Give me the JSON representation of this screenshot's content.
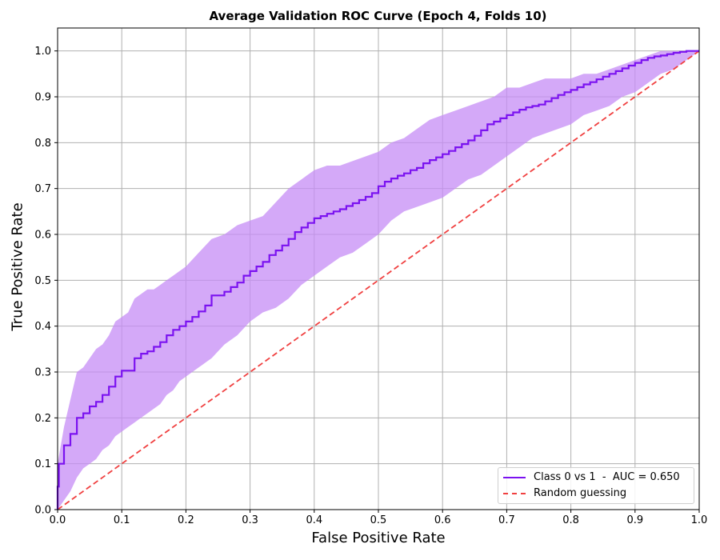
{
  "chart_data": {
    "type": "line",
    "title": "Average Validation ROC Curve (Epoch 4, Folds 10)",
    "xlabel": "False Positive Rate",
    "ylabel": "True Positive Rate",
    "xlim": [
      0.0,
      1.0
    ],
    "ylim": [
      0.0,
      1.05
    ],
    "xticks": [
      "0.0",
      "0.1",
      "0.2",
      "0.3",
      "0.4",
      "0.5",
      "0.6",
      "0.7",
      "0.8",
      "0.9",
      "1.0"
    ],
    "yticks": [
      "0.0",
      "0.1",
      "0.2",
      "0.3",
      "0.4",
      "0.5",
      "0.6",
      "0.7",
      "0.8",
      "0.9",
      "1.0"
    ],
    "grid": true,
    "legend_position": "lower-right",
    "series": [
      {
        "name": "Class 0 vs 1  -  AUC = 0.650",
        "color": "#7b12f0",
        "style": "step",
        "x": [
          0.0,
          0.002,
          0.01,
          0.02,
          0.03,
          0.04,
          0.05,
          0.06,
          0.07,
          0.08,
          0.09,
          0.1,
          0.12,
          0.13,
          0.14,
          0.15,
          0.16,
          0.17,
          0.18,
          0.19,
          0.2,
          0.21,
          0.22,
          0.23,
          0.24,
          0.26,
          0.27,
          0.28,
          0.29,
          0.3,
          0.31,
          0.32,
          0.33,
          0.34,
          0.35,
          0.36,
          0.37,
          0.38,
          0.39,
          0.4,
          0.41,
          0.42,
          0.43,
          0.44,
          0.45,
          0.46,
          0.47,
          0.48,
          0.49,
          0.5,
          0.51,
          0.52,
          0.53,
          0.54,
          0.55,
          0.56,
          0.57,
          0.58,
          0.59,
          0.6,
          0.61,
          0.62,
          0.63,
          0.64,
          0.65,
          0.66,
          0.67,
          0.68,
          0.69,
          0.7,
          0.71,
          0.72,
          0.73,
          0.74,
          0.75,
          0.76,
          0.77,
          0.78,
          0.79,
          0.8,
          0.81,
          0.82,
          0.83,
          0.84,
          0.85,
          0.86,
          0.87,
          0.88,
          0.89,
          0.9,
          0.91,
          0.92,
          0.93,
          0.94,
          0.95,
          0.96,
          0.97,
          0.98,
          0.99,
          1.0
        ],
        "y": [
          0.05,
          0.1,
          0.14,
          0.165,
          0.2,
          0.21,
          0.225,
          0.235,
          0.25,
          0.268,
          0.29,
          0.303,
          0.33,
          0.34,
          0.345,
          0.355,
          0.365,
          0.38,
          0.392,
          0.4,
          0.41,
          0.42,
          0.432,
          0.445,
          0.467,
          0.475,
          0.485,
          0.495,
          0.51,
          0.52,
          0.53,
          0.54,
          0.555,
          0.565,
          0.576,
          0.59,
          0.605,
          0.615,
          0.625,
          0.635,
          0.64,
          0.645,
          0.65,
          0.655,
          0.662,
          0.668,
          0.675,
          0.682,
          0.69,
          0.705,
          0.715,
          0.722,
          0.728,
          0.733,
          0.74,
          0.745,
          0.755,
          0.762,
          0.768,
          0.775,
          0.782,
          0.79,
          0.797,
          0.805,
          0.815,
          0.827,
          0.84,
          0.846,
          0.853,
          0.86,
          0.866,
          0.872,
          0.877,
          0.88,
          0.883,
          0.89,
          0.897,
          0.904,
          0.91,
          0.915,
          0.921,
          0.927,
          0.932,
          0.938,
          0.944,
          0.95,
          0.956,
          0.962,
          0.968,
          0.974,
          0.98,
          0.985,
          0.988,
          0.99,
          0.993,
          0.996,
          0.998,
          1.0,
          1.0,
          1.0
        ]
      },
      {
        "name": "Random guessing",
        "color": "#f04040",
        "style": "dashed",
        "x": [
          0.0,
          1.0
        ],
        "y": [
          0.0,
          1.0
        ]
      }
    ],
    "band": {
      "color": "#c58cf5",
      "x": [
        0.0,
        0.01,
        0.02,
        0.03,
        0.04,
        0.05,
        0.06,
        0.07,
        0.08,
        0.09,
        0.1,
        0.11,
        0.12,
        0.13,
        0.14,
        0.15,
        0.16,
        0.17,
        0.18,
        0.19,
        0.2,
        0.22,
        0.24,
        0.26,
        0.28,
        0.3,
        0.32,
        0.34,
        0.36,
        0.38,
        0.4,
        0.42,
        0.44,
        0.46,
        0.48,
        0.5,
        0.52,
        0.54,
        0.56,
        0.58,
        0.6,
        0.62,
        0.64,
        0.66,
        0.68,
        0.7,
        0.72,
        0.74,
        0.76,
        0.78,
        0.8,
        0.82,
        0.84,
        0.86,
        0.88,
        0.9,
        0.92,
        0.94,
        0.96,
        0.98,
        1.0
      ],
      "upper": [
        0.1,
        0.18,
        0.24,
        0.3,
        0.31,
        0.33,
        0.35,
        0.36,
        0.38,
        0.41,
        0.42,
        0.43,
        0.46,
        0.47,
        0.48,
        0.48,
        0.49,
        0.5,
        0.51,
        0.52,
        0.53,
        0.56,
        0.59,
        0.6,
        0.62,
        0.63,
        0.64,
        0.67,
        0.7,
        0.72,
        0.74,
        0.75,
        0.75,
        0.76,
        0.77,
        0.78,
        0.8,
        0.81,
        0.83,
        0.85,
        0.86,
        0.87,
        0.88,
        0.89,
        0.9,
        0.92,
        0.92,
        0.93,
        0.94,
        0.94,
        0.94,
        0.95,
        0.95,
        0.96,
        0.97,
        0.98,
        0.99,
        1.0,
        1.0,
        1.0,
        1.0
      ],
      "lower": [
        0.0,
        0.02,
        0.04,
        0.07,
        0.09,
        0.1,
        0.11,
        0.13,
        0.14,
        0.16,
        0.17,
        0.18,
        0.19,
        0.2,
        0.21,
        0.22,
        0.23,
        0.25,
        0.26,
        0.28,
        0.29,
        0.31,
        0.33,
        0.36,
        0.38,
        0.41,
        0.43,
        0.44,
        0.46,
        0.49,
        0.51,
        0.53,
        0.55,
        0.56,
        0.58,
        0.6,
        0.63,
        0.65,
        0.66,
        0.67,
        0.68,
        0.7,
        0.72,
        0.73,
        0.75,
        0.77,
        0.79,
        0.81,
        0.82,
        0.83,
        0.84,
        0.86,
        0.87,
        0.88,
        0.9,
        0.91,
        0.93,
        0.95,
        0.96,
        0.98,
        1.0
      ]
    }
  }
}
